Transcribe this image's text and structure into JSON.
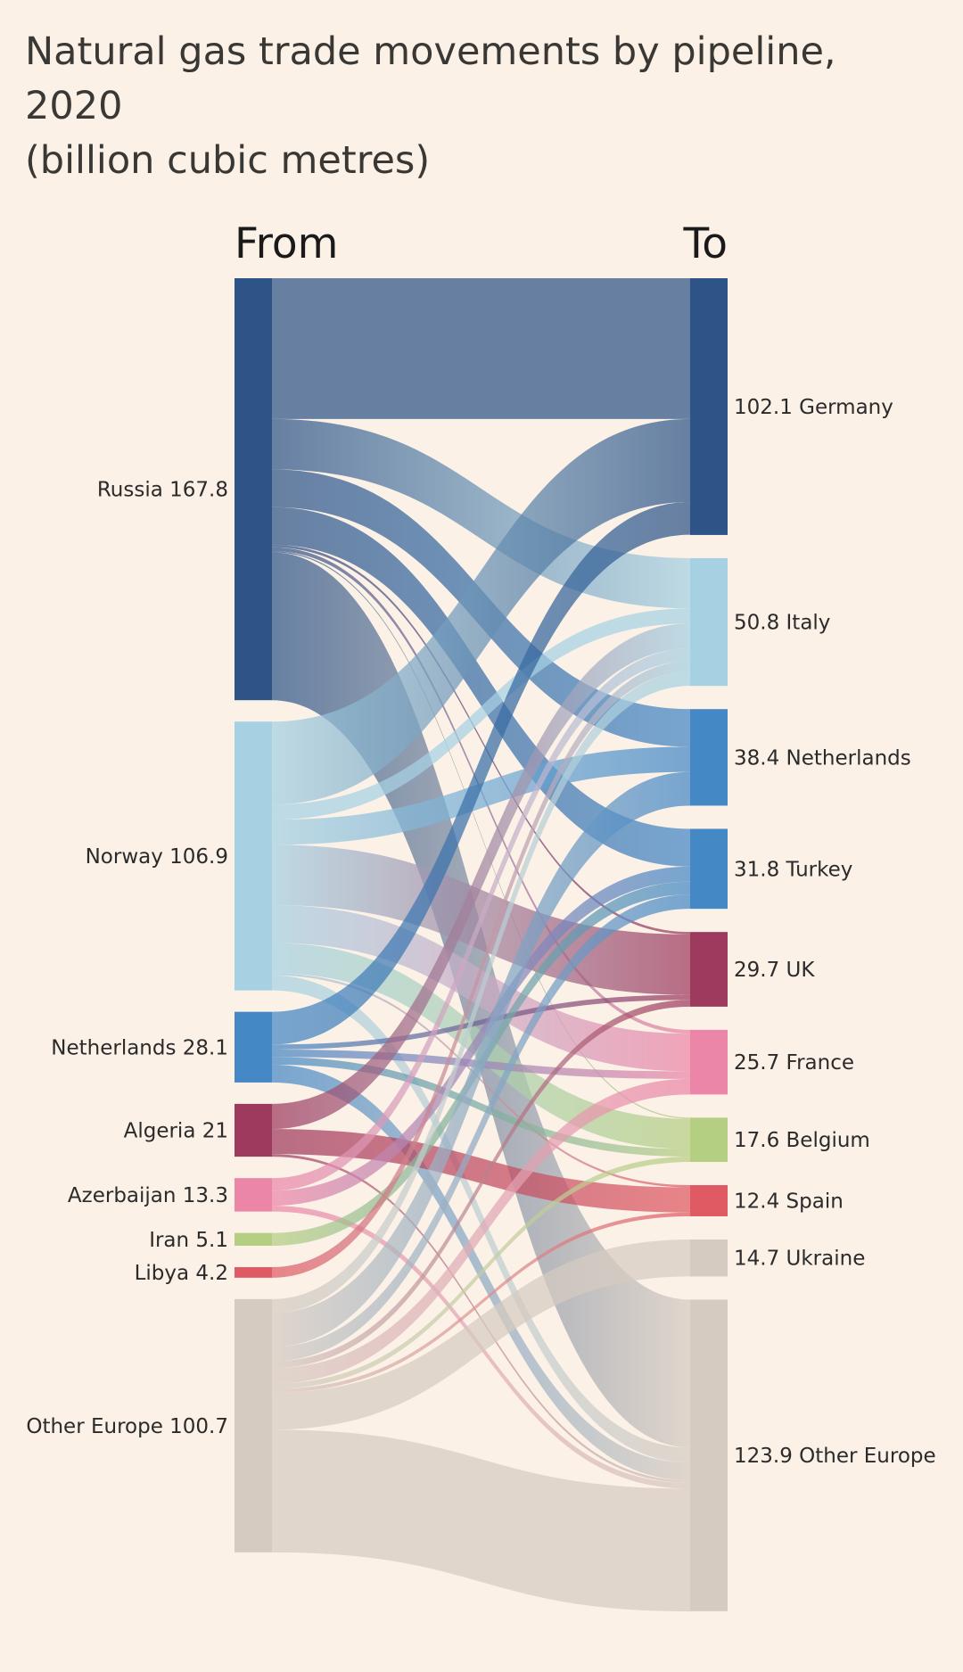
{
  "title": {
    "line1": "Natural gas trade movements by pipeline, 2020",
    "line2": "(billion cubic metres)"
  },
  "chart_data": {
    "type": "sankey",
    "units": "billion cubic metres",
    "headers": {
      "from": "From",
      "to": "To"
    },
    "sources": [
      {
        "id": "russia",
        "name": "Russia",
        "value": 167.8,
        "color": "#2e5487"
      },
      {
        "id": "norway",
        "name": "Norway",
        "value": 106.9,
        "color": "#a6d1e3"
      },
      {
        "id": "netherlands",
        "name": "Netherlands",
        "value": 28.1,
        "color": "#4488c6"
      },
      {
        "id": "algeria",
        "name": "Algeria",
        "value": 21,
        "color": "#9e3a5e"
      },
      {
        "id": "azerbaijan",
        "name": "Azerbaijan",
        "value": 13.3,
        "color": "#ec86a8"
      },
      {
        "id": "iran",
        "name": "Iran",
        "value": 5.1,
        "color": "#b4cf82"
      },
      {
        "id": "libya",
        "name": "Libya",
        "value": 4.2,
        "color": "#e05a63"
      },
      {
        "id": "other-europe",
        "name": "Other Europe",
        "value": 100.7,
        "color": "#d5cbc1"
      }
    ],
    "targets": [
      {
        "id": "germany",
        "name": "Germany",
        "value": 102.1,
        "color": "#2e5487"
      },
      {
        "id": "italy",
        "name": "Italy",
        "value": 50.8,
        "color": "#a6d1e3"
      },
      {
        "id": "netherlands",
        "name": "Netherlands",
        "value": 38.4,
        "color": "#4488c6"
      },
      {
        "id": "turkey",
        "name": "Turkey",
        "value": 31.8,
        "color": "#4488c6"
      },
      {
        "id": "uk",
        "name": "UK",
        "value": 29.7,
        "color": "#9e3a5e"
      },
      {
        "id": "france",
        "name": "France",
        "value": 25.7,
        "color": "#ec86a8"
      },
      {
        "id": "belgium",
        "name": "Belgium",
        "value": 17.6,
        "color": "#b4cf82"
      },
      {
        "id": "spain",
        "name": "Spain",
        "value": 12.4,
        "color": "#e05a63"
      },
      {
        "id": "ukraine",
        "name": "Ukraine",
        "value": 14.7,
        "color": "#d5cbc1"
      },
      {
        "id": "other-europe",
        "name": "Other Europe",
        "value": 123.9,
        "color": "#d5cbc1"
      }
    ],
    "links": [
      {
        "from": "russia",
        "to": "germany",
        "value": 56
      },
      {
        "from": "russia",
        "to": "italy",
        "value": 20
      },
      {
        "from": "russia",
        "to": "netherlands",
        "value": 15
      },
      {
        "from": "russia",
        "to": "turkey",
        "value": 15
      },
      {
        "from": "russia",
        "to": "uk",
        "value": 1
      },
      {
        "from": "russia",
        "to": "france",
        "value": 1.5
      },
      {
        "from": "russia",
        "to": "belgium",
        "value": 0.5
      },
      {
        "from": "russia",
        "to": "other-europe",
        "value": 58.8
      },
      {
        "from": "norway",
        "to": "germany",
        "value": 33
      },
      {
        "from": "norway",
        "to": "italy",
        "value": 6
      },
      {
        "from": "norway",
        "to": "netherlands",
        "value": 10
      },
      {
        "from": "norway",
        "to": "uk",
        "value": 24
      },
      {
        "from": "norway",
        "to": "france",
        "value": 15
      },
      {
        "from": "norway",
        "to": "belgium",
        "value": 12
      },
      {
        "from": "norway",
        "to": "spain",
        "value": 0.9
      },
      {
        "from": "norway",
        "to": "other-europe",
        "value": 6
      },
      {
        "from": "netherlands",
        "to": "germany",
        "value": 13
      },
      {
        "from": "netherlands",
        "to": "uk",
        "value": 2
      },
      {
        "from": "netherlands",
        "to": "france",
        "value": 3
      },
      {
        "from": "netherlands",
        "to": "belgium",
        "value": 3
      },
      {
        "from": "netherlands",
        "to": "other-europe",
        "value": 7.1
      },
      {
        "from": "algeria",
        "to": "italy",
        "value": 10
      },
      {
        "from": "algeria",
        "to": "spain",
        "value": 10
      },
      {
        "from": "algeria",
        "to": "other-europe",
        "value": 1
      },
      {
        "from": "azerbaijan",
        "to": "italy",
        "value": 5
      },
      {
        "from": "azerbaijan",
        "to": "turkey",
        "value": 6
      },
      {
        "from": "azerbaijan",
        "to": "other-europe",
        "value": 2.3
      },
      {
        "from": "iran",
        "to": "turkey",
        "value": 5.1
      },
      {
        "from": "libya",
        "to": "italy",
        "value": 4.2
      },
      {
        "from": "other-europe",
        "to": "italy",
        "value": 5.6
      },
      {
        "from": "other-europe",
        "to": "netherlands",
        "value": 13.4
      },
      {
        "from": "other-europe",
        "to": "turkey",
        "value": 5.7
      },
      {
        "from": "other-europe",
        "to": "uk",
        "value": 2.7
      },
      {
        "from": "other-europe",
        "to": "france",
        "value": 6.2
      },
      {
        "from": "other-europe",
        "to": "belgium",
        "value": 2.1
      },
      {
        "from": "other-europe",
        "to": "spain",
        "value": 1.5
      },
      {
        "from": "other-europe",
        "to": "ukraine",
        "value": 14.7
      },
      {
        "from": "other-europe",
        "to": "other-europe",
        "value": 48.8
      }
    ]
  }
}
